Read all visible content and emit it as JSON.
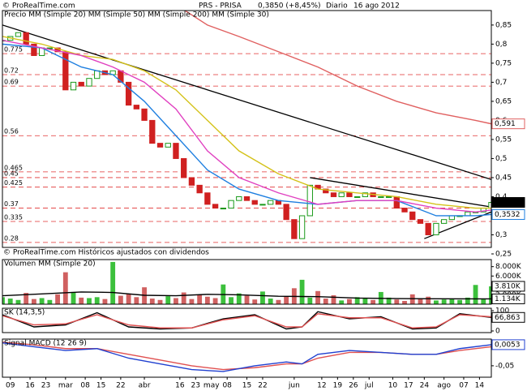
{
  "header": {
    "copyright": "© ProRealTime.com",
    "title": "PRS - PRISA",
    "price": "0,3850 (+8,45%)",
    "period": "Diario",
    "date": "16 ago 2012",
    "footer": "© ProRealTime.com Históricos ajustados con dividendos"
  },
  "chart_data": [
    {
      "type": "candlestick",
      "label": "Precio",
      "x": [
        0,
        2,
        4,
        6,
        8,
        10,
        12,
        14,
        16,
        18,
        20,
        22,
        24,
        26,
        28,
        30,
        32,
        34,
        36,
        38,
        40,
        42,
        44,
        46,
        48,
        50,
        52,
        54,
        56,
        58,
        60,
        62,
        64,
        66,
        68,
        70,
        72,
        74,
        76,
        78,
        80,
        82,
        84,
        86,
        88,
        90,
        92,
        94,
        96,
        98,
        100,
        102,
        104,
        106,
        108,
        110,
        112,
        114,
        116,
        118,
        120,
        122,
        124
      ],
      "values": [
        0.81,
        0.82,
        0.83,
        0.8,
        0.77,
        0.79,
        0.79,
        0.78,
        0.68,
        0.7,
        0.69,
        0.71,
        0.73,
        0.72,
        0.73,
        0.7,
        0.64,
        0.63,
        0.6,
        0.54,
        0.53,
        0.54,
        0.5,
        0.45,
        0.43,
        0.41,
        0.38,
        0.37,
        0.37,
        0.39,
        0.4,
        0.39,
        0.38,
        0.38,
        0.39,
        0.38,
        0.34,
        0.29,
        0.35,
        0.43,
        0.42,
        0.41,
        0.4,
        0.41,
        0.4,
        0.4,
        0.41,
        0.4,
        0.4,
        0.4,
        0.37,
        0.36,
        0.34,
        0.33,
        0.3,
        0.33,
        0.34,
        0.35,
        0.35,
        0.36,
        0.36,
        0.37,
        0.385
      ],
      "last_label": "0,3850",
      "up_color": "#1a9a1a",
      "down_color": "#d02020",
      "xlim": [
        0,
        124
      ],
      "ylim": [
        0.267,
        0.888
      ],
      "yticks": [
        {
          "value": 0.85,
          "label": "0,85"
        },
        {
          "value": 0.8,
          "label": "0,8"
        },
        {
          "value": 0.75,
          "label": "0,75"
        },
        {
          "value": 0.7,
          "label": "0,7"
        },
        {
          "value": 0.65,
          "label": "0,65"
        },
        {
          "value": 0.6,
          "label": "0,6"
        },
        {
          "value": 0.55,
          "label": "0,55"
        },
        {
          "value": 0.5,
          "label": "0,5"
        },
        {
          "value": 0.45,
          "label": "0,45"
        },
        {
          "value": 0.4,
          "label": "0,4"
        },
        {
          "value": 0.35,
          "label": "0,35"
        },
        {
          "value": 0.3,
          "label": "0,3"
        },
        {
          "value": 0.25,
          "label": "0,25"
        }
      ],
      "levels": [
        {
          "value": 0.775,
          "label": "0.775"
        },
        {
          "value": 0.72,
          "label": "0.72"
        },
        {
          "value": 0.69,
          "label": "0.69"
        },
        {
          "value": 0.56,
          "label": "0.56"
        },
        {
          "value": 0.465,
          "label": "0.465"
        },
        {
          "value": 0.45,
          "label": "0.45"
        },
        {
          "value": 0.425,
          "label": "0.425"
        },
        {
          "value": 0.37,
          "label": "0.37"
        },
        {
          "value": 0.335,
          "label": "0.335"
        },
        {
          "value": 0.28,
          "label": "0.28"
        }
      ],
      "trendlines": [
        {
          "x": [
            0,
            124
          ],
          "values": [
            0.85,
            0.445
          ]
        },
        {
          "x": [
            78,
            124
          ],
          "values": [
            0.45,
            0.373
          ]
        },
        {
          "x": [
            107,
            124
          ],
          "values": [
            0.29,
            0.36
          ]
        }
      ],
      "series": [
        {
          "name": "MM (Simple 20)",
          "color": "#1e7fe0",
          "x": [
            0,
            10,
            20,
            28,
            36,
            44,
            52,
            60,
            70,
            80,
            90,
            100,
            110,
            120,
            124
          ],
          "values": [
            0.8,
            0.79,
            0.74,
            0.72,
            0.65,
            0.56,
            0.47,
            0.42,
            0.39,
            0.38,
            0.39,
            0.39,
            0.35,
            0.35,
            0.3532
          ],
          "last_label": "0,3532"
        },
        {
          "name": "MM (Simple 50)",
          "color": "#d4c21a",
          "x": [
            0,
            10,
            20,
            28,
            36,
            44,
            52,
            60,
            70,
            80,
            90,
            100,
            110,
            120,
            124
          ],
          "values": [
            0.82,
            0.8,
            0.77,
            0.76,
            0.73,
            0.68,
            0.6,
            0.52,
            0.46,
            0.42,
            0.41,
            0.4,
            0.38,
            0.37,
            0.37
          ]
        },
        {
          "name": "MM (Simple 200)",
          "color": "#e06060",
          "x": [
            46,
            52,
            60,
            70,
            80,
            90,
            100,
            110,
            120,
            124
          ],
          "values": [
            0.89,
            0.85,
            0.82,
            0.78,
            0.74,
            0.69,
            0.65,
            0.62,
            0.6,
            0.591
          ],
          "last_label": "0,591"
        },
        {
          "name": "MM (Simple 30)",
          "color": "#e040c0",
          "x": [
            0,
            10,
            20,
            28,
            36,
            44,
            52,
            60,
            70,
            80,
            90,
            100,
            110,
            120,
            124
          ],
          "values": [
            0.81,
            0.79,
            0.77,
            0.74,
            0.7,
            0.63,
            0.52,
            0.45,
            0.41,
            0.38,
            0.39,
            0.39,
            0.37,
            0.36,
            0.365
          ]
        }
      ]
    },
    {
      "type": "bar",
      "label": "Volumen",
      "values": [
        1500,
        1200,
        900,
        2400,
        1100,
        1300,
        900,
        2100,
        6800,
        2600,
        1400,
        1300,
        1500,
        1100,
        9000,
        1800,
        2200,
        1500,
        3600,
        1200,
        900,
        1700,
        1300,
        2500,
        1100,
        2000,
        1600,
        1300,
        4200,
        1500,
        2300,
        1800,
        1000,
        2700,
        1200,
        900,
        1600,
        3400,
        5200,
        1400,
        2800,
        1200,
        1900,
        800,
        1100,
        1500,
        1300,
        900,
        2600,
        1400,
        1000,
        700,
        2100,
        1200,
        1600,
        800,
        1000,
        1200,
        900,
        1400,
        4100,
        1100,
        3810
      ],
      "last_label": "3.810K",
      "xlim": [
        0,
        124
      ],
      "ylim": [
        0,
        9500
      ],
      "yticks": [
        {
          "value": 8000,
          "label": "8.000K"
        },
        {
          "value": 6000,
          "label": "6.000K"
        },
        {
          "value": 4000,
          "label": "4.000K"
        },
        {
          "value": 2000,
          "label": "2.000K"
        }
      ],
      "series": [
        {
          "name": "MM (Simple 20)",
          "color": "#000000",
          "x": [
            0,
            10,
            20,
            28,
            36,
            44,
            52,
            60,
            70,
            80,
            90,
            100,
            110,
            120,
            124
          ],
          "values": [
            1800,
            2200,
            2600,
            2500,
            1900,
            1800,
            2100,
            2000,
            1700,
            1600,
            1300,
            1200,
            1150,
            1140,
            1134
          ],
          "last_label": "1.134K"
        }
      ]
    },
    {
      "type": "line",
      "xlim": [
        0,
        124
      ],
      "ylim": [
        -8,
        112
      ],
      "yticks": [
        100,
        0
      ],
      "series": [
        {
          "name": "SK",
          "color": "#000000",
          "x": [
            0,
            8,
            16,
            24,
            32,
            40,
            48,
            56,
            64,
            72,
            76,
            80,
            88,
            96,
            104,
            110,
            116,
            124
          ],
          "values": [
            80,
            20,
            30,
            90,
            20,
            10,
            15,
            60,
            80,
            10,
            20,
            95,
            60,
            70,
            10,
            15,
            85,
            66.863
          ],
          "last_label": "66,863"
        },
        {
          "name": "(14,3,5)",
          "color": "#e05050",
          "x": [
            0,
            8,
            16,
            24,
            32,
            40,
            48,
            56,
            64,
            72,
            76,
            80,
            88,
            96,
            104,
            110,
            116,
            124
          ],
          "values": [
            75,
            30,
            35,
            80,
            30,
            15,
            15,
            55,
            75,
            20,
            20,
            85,
            65,
            65,
            15,
            20,
            80,
            70
          ]
        }
      ]
    },
    {
      "type": "line",
      "xlim": [
        0,
        124
      ],
      "ylim": [
        -0.08,
        0.02
      ],
      "yticks": [
        {
          "value": -0.05,
          "label": "-0,05"
        }
      ],
      "xticks": [
        {
          "value": 2,
          "label": "09"
        },
        {
          "value": 7,
          "label": "16"
        },
        {
          "value": 11,
          "label": "23"
        },
        {
          "value": 16,
          "label": "mar"
        },
        {
          "value": 21,
          "label": "08"
        },
        {
          "value": 25,
          "label": "15"
        },
        {
          "value": 30,
          "label": "22"
        },
        {
          "value": 36,
          "label": "abr"
        },
        {
          "value": 45,
          "label": "16"
        },
        {
          "value": 49,
          "label": "23"
        },
        {
          "value": 53,
          "label": "may"
        },
        {
          "value": 57,
          "label": "08"
        },
        {
          "value": 62,
          "label": "15"
        },
        {
          "value": 66,
          "label": "22"
        },
        {
          "value": 74,
          "label": "jun"
        },
        {
          "value": 81,
          "label": "12"
        },
        {
          "value": 85,
          "label": "19"
        },
        {
          "value": 89,
          "label": "26"
        },
        {
          "value": 93,
          "label": "jul"
        },
        {
          "value": 99,
          "label": "10"
        },
        {
          "value": 103,
          "label": "17"
        },
        {
          "value": 107,
          "label": "24"
        },
        {
          "value": 112,
          "label": "ago"
        },
        {
          "value": 117,
          "label": "07"
        },
        {
          "value": 121,
          "label": "14"
        }
      ],
      "series": [
        {
          "name": "Signal",
          "color": "#e05050",
          "x": [
            0,
            8,
            16,
            24,
            32,
            40,
            48,
            56,
            64,
            72,
            76,
            80,
            88,
            96,
            104,
            110,
            116,
            124
          ],
          "values": [
            0.012,
            0.005,
            -0.005,
            -0.005,
            -0.02,
            -0.035,
            -0.05,
            -0.06,
            -0.055,
            -0.045,
            -0.045,
            -0.03,
            -0.015,
            -0.015,
            -0.02,
            -0.02,
            -0.01,
            0.0
          ]
        },
        {
          "name": "MACD (12 26 9)",
          "color": "#2040d0",
          "x": [
            0,
            8,
            16,
            24,
            32,
            40,
            48,
            56,
            64,
            72,
            76,
            80,
            88,
            96,
            104,
            110,
            116,
            124
          ],
          "values": [
            0.01,
            0.0,
            -0.01,
            -0.005,
            -0.03,
            -0.045,
            -0.06,
            -0.065,
            -0.05,
            -0.04,
            -0.045,
            -0.02,
            -0.01,
            -0.015,
            -0.02,
            -0.02,
            -0.005,
            0.0053
          ],
          "last_label": "0,0053"
        }
      ]
    }
  ]
}
